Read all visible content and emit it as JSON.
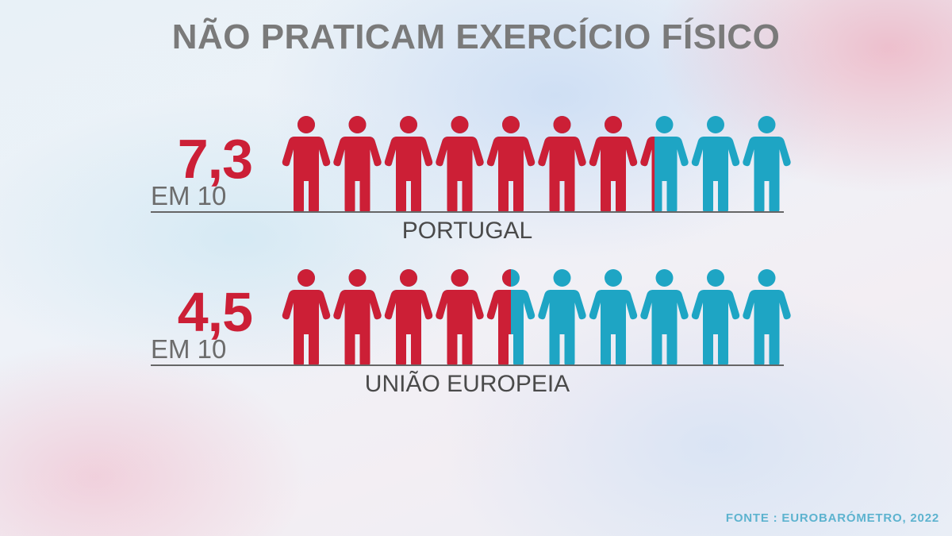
{
  "title": "NÃO PRATICAM EXERCÍCIO FÍSICO",
  "source": "FONTE : EUROBARÓMETRO, 2022",
  "colors": {
    "active": "#cc1f36",
    "inactive": "#1ea5c4",
    "title": "#7a7a7a",
    "source": "#5db3cf"
  },
  "chart_data": {
    "type": "pictogram",
    "total_icons": 10,
    "icon": "person-icon",
    "rows": [
      {
        "value_label": "7,3",
        "unit_label": "EM 10",
        "value": 7.3,
        "region": "PORTUGAL"
      },
      {
        "value_label": "4,5",
        "unit_label": "EM 10",
        "value": 4.5,
        "region": "UNIÃO EUROPEIA"
      }
    ]
  }
}
